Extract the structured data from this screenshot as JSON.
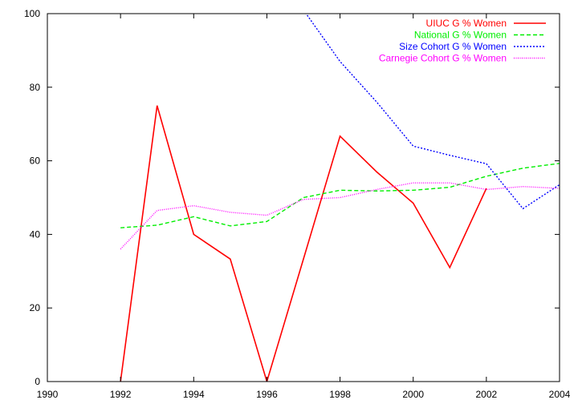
{
  "chart_data": {
    "type": "line",
    "title": "",
    "xlabel": "",
    "ylabel": "",
    "xlim": [
      1990,
      2004
    ],
    "ylim": [
      0,
      100
    ],
    "x_ticks": [
      1990,
      1992,
      1994,
      1996,
      1998,
      2000,
      2002,
      2004
    ],
    "y_ticks": [
      0,
      20,
      40,
      60,
      80,
      100
    ],
    "x_tick_labels": [
      "1990",
      "1992",
      "1994",
      "1996",
      "1998",
      "2000",
      "2002",
      "2004"
    ],
    "y_tick_labels": [
      "0",
      "20",
      "40",
      "60",
      "80",
      "100"
    ],
    "grid": false,
    "legend_position": "top-right",
    "series": [
      {
        "name": "UIUC G % Women",
        "color": "#ff0000",
        "dash": "solid",
        "x": [
          1992,
          1993,
          1994,
          1995,
          1996,
          1997,
          1998,
          1999,
          2000,
          2001,
          2002
        ],
        "y": [
          0,
          75,
          40,
          33.3,
          0,
          33.3,
          66.7,
          57,
          48.5,
          31,
          52.5
        ]
      },
      {
        "name": "National G % Women",
        "color": "#00ee00",
        "dash": "dashed",
        "x": [
          1992,
          1993,
          1994,
          1995,
          1996,
          1997,
          1998,
          1999,
          2000,
          2001,
          2002,
          2003,
          2004
        ],
        "y": [
          41.8,
          42.5,
          44.8,
          42.3,
          43.5,
          50,
          52,
          51.8,
          52,
          52.8,
          55.8,
          58,
          59.3
        ]
      },
      {
        "name": "Size Cohort G % Women",
        "color": "#0000ff",
        "dash": "dotted",
        "x": [
          1997,
          1998,
          1999,
          2000,
          2001,
          2002,
          2003,
          2004
        ],
        "y": [
          101,
          87,
          76,
          64,
          61.5,
          59.2,
          47,
          53.5
        ]
      },
      {
        "name": "Carnegie Cohort G % Women",
        "color": "#ff00ff",
        "dash": "fine-dotted",
        "x": [
          1992,
          1993,
          1994,
          1995,
          1996,
          1997,
          1998,
          1999,
          2000,
          2001,
          2002,
          2003,
          2004
        ],
        "y": [
          36,
          46.5,
          47.8,
          46,
          45.2,
          49.5,
          50,
          52.2,
          54,
          54,
          52.2,
          53,
          52.5
        ]
      }
    ]
  }
}
